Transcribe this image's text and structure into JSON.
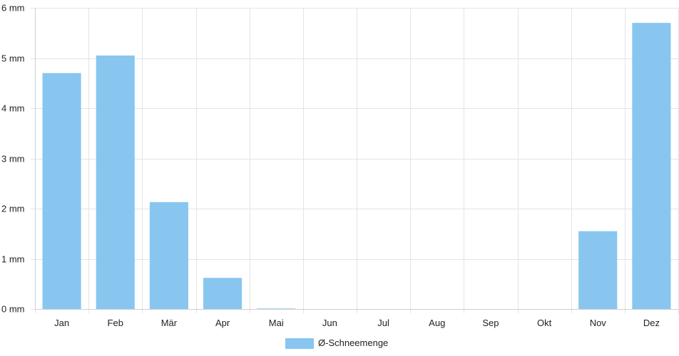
{
  "chart_data": {
    "type": "bar",
    "categories": [
      "Jan",
      "Feb",
      "Mär",
      "Apr",
      "Mai",
      "Jun",
      "Jul",
      "Aug",
      "Sep",
      "Okt",
      "Nov",
      "Dez"
    ],
    "series": [
      {
        "name": "Ø-Schneemenge",
        "values": [
          4.7,
          5.05,
          2.13,
          0.62,
          0.01,
          0,
          0,
          0,
          0,
          0,
          1.55,
          5.7
        ],
        "color": "#88C6F0"
      }
    ],
    "y_ticks": [
      "0 mm",
      "1 mm",
      "2 mm",
      "3 mm",
      "4 mm",
      "5 mm",
      "6 mm"
    ],
    "ylim": [
      0,
      6
    ],
    "grid": true,
    "legend_position": "bottom"
  }
}
